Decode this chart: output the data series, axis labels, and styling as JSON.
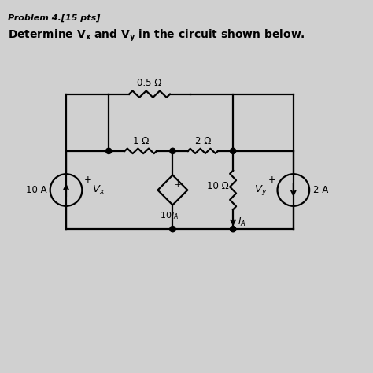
{
  "bg_color": "#d0d0d0",
  "wire_color": "#000000",
  "title1": "Problem 4.[15 pts]",
  "title2": "Determine $V_x$ $and$ $V_y$ in the circuit shown below.",
  "r05_label": "0.5 Ω",
  "r1_label": "1 Ω",
  "r2_label": "2 Ω",
  "r10_label": "10 Ω",
  "src10A_label": "10 A",
  "src2A_label": "2 A",
  "dep_label": "10$I_A$",
  "IA_label": "$I_A$",
  "Vx_label": "$V_x$",
  "Vy_label": "$V_y$",
  "xL": 1.8,
  "xN1": 3.0,
  "xN2": 4.8,
  "xN3": 6.5,
  "xR": 8.2,
  "yTop": 7.6,
  "yMid": 6.0,
  "yBot": 3.8,
  "r_src": 0.45
}
